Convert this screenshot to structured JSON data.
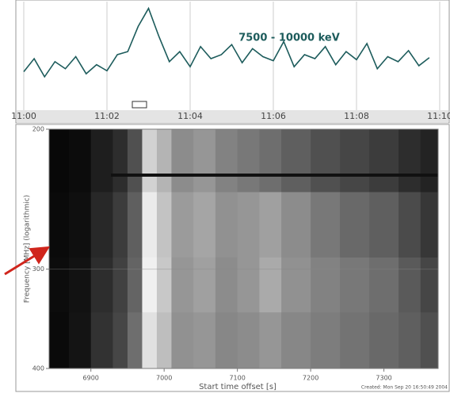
{
  "chart_data": [
    {
      "type": "line",
      "annotation": "7500 - 10000 keV",
      "xlim": [
        660,
        670
      ],
      "xticks": [
        {
          "value": 660,
          "label": "11:00"
        },
        {
          "value": 662,
          "label": "11:02"
        },
        {
          "value": 664,
          "label": "11:04"
        },
        {
          "value": 666,
          "label": "11:06"
        },
        {
          "value": 668,
          "label": "11:08"
        },
        {
          "value": 670,
          "label": "11:10"
        }
      ],
      "ylim": [
        0,
        100
      ],
      "grid": true,
      "series": [
        {
          "color": "#1d5c5c",
          "x": [
            660,
            660.25,
            660.5,
            660.75,
            661,
            661.25,
            661.5,
            661.75,
            662,
            662.25,
            662.5,
            662.75,
            663,
            663.25,
            663.5,
            663.75,
            664,
            664.25,
            664.5,
            664.75,
            665,
            665.25,
            665.5,
            665.75,
            666,
            666.25,
            666.5,
            666.75,
            667,
            667.25,
            667.5,
            667.75,
            668,
            668.25,
            668.5,
            668.75,
            669,
            669.25,
            669.5,
            669.75
          ],
          "values": [
            35,
            48,
            30,
            45,
            38,
            50,
            33,
            42,
            36,
            52,
            55,
            80,
            98,
            70,
            45,
            55,
            40,
            60,
            48,
            52,
            62,
            44,
            58,
            50,
            46,
            65,
            40,
            52,
            48,
            60,
            42,
            55,
            47,
            63,
            38,
            50,
            45,
            56,
            41,
            49
          ]
        }
      ]
    },
    {
      "type": "heatmap",
      "x_label": "Start time offset [s]",
      "y_label": "Frequency [MHz] (logarithmic)",
      "annotation": "Created: Mon Sep 20 16:50:49 2004",
      "xlim": [
        6843,
        7374
      ],
      "xticks": [
        6900,
        7000,
        7100,
        7200,
        7300
      ],
      "ylim": [
        200,
        400
      ],
      "yticks": [
        200,
        300,
        400
      ],
      "log_y": true,
      "x": [
        6843,
        6870,
        6900,
        6930,
        6950,
        6970,
        6990,
        7010,
        7040,
        7070,
        7100,
        7130,
        7160,
        7200,
        7240,
        7280,
        7320,
        7350,
        7374
      ],
      "y": [
        200,
        240,
        290,
        340,
        400
      ],
      "values": [
        [
          8,
          12,
          30,
          45,
          80,
          210,
          180,
          140,
          150,
          130,
          120,
          110,
          95,
          80,
          70,
          60,
          45,
          35
        ],
        [
          10,
          15,
          40,
          60,
          95,
          235,
          195,
          155,
          165,
          145,
          150,
          160,
          140,
          120,
          105,
          95,
          75,
          55
        ],
        [
          12,
          18,
          45,
          65,
          100,
          240,
          200,
          150,
          160,
          140,
          150,
          170,
          145,
          130,
          120,
          110,
          90,
          70
        ],
        [
          10,
          20,
          50,
          70,
          110,
          225,
          190,
          145,
          150,
          135,
          140,
          150,
          135,
          125,
          115,
          105,
          95,
          80
        ]
      ]
    }
  ]
}
